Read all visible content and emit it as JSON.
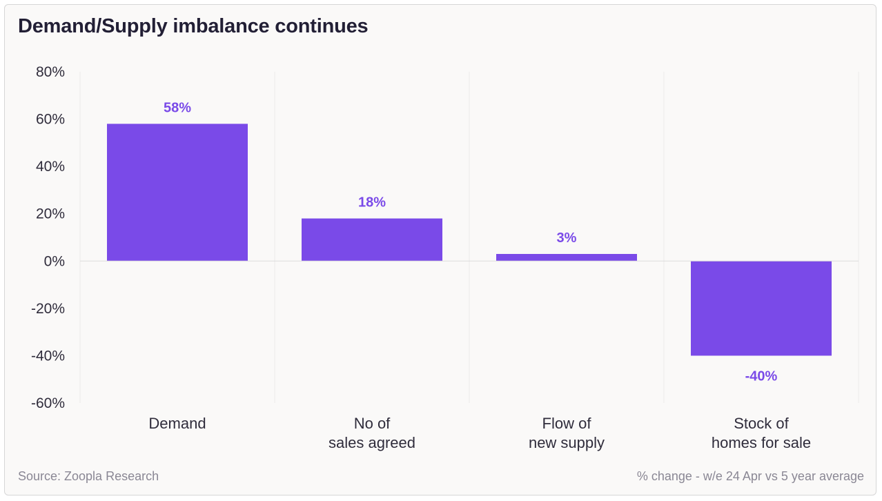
{
  "title": "Demand/Supply imbalance continues",
  "source": "Source: Zoopla Research",
  "note": "% change - w/e 24 Apr vs 5 year average",
  "colors": {
    "bar": "#7a4ae8",
    "label": "#7a4ae8",
    "grid": "#ecebea",
    "zero_line": "#dcdcdc"
  },
  "chart_data": {
    "type": "bar",
    "title": "Demand/Supply imbalance continues",
    "categories": [
      [
        "Demand"
      ],
      [
        "No of",
        "sales agreed"
      ],
      [
        "Flow of",
        "new supply"
      ],
      [
        "Stock of",
        "homes for sale"
      ]
    ],
    "values": [
      58,
      18,
      3,
      -40
    ],
    "value_labels": [
      "58%",
      "18%",
      "3%",
      "-40%"
    ],
    "ylim": [
      -60,
      80
    ],
    "yticks": [
      80,
      60,
      40,
      20,
      0,
      -20,
      -40,
      -60
    ],
    "ytick_labels": [
      "80%",
      "60%",
      "40%",
      "20%",
      "0%",
      "-20%",
      "-40%",
      "-60%"
    ],
    "xlabel": "",
    "ylabel": "",
    "grid": "vertical category dividers",
    "legend": "none"
  }
}
